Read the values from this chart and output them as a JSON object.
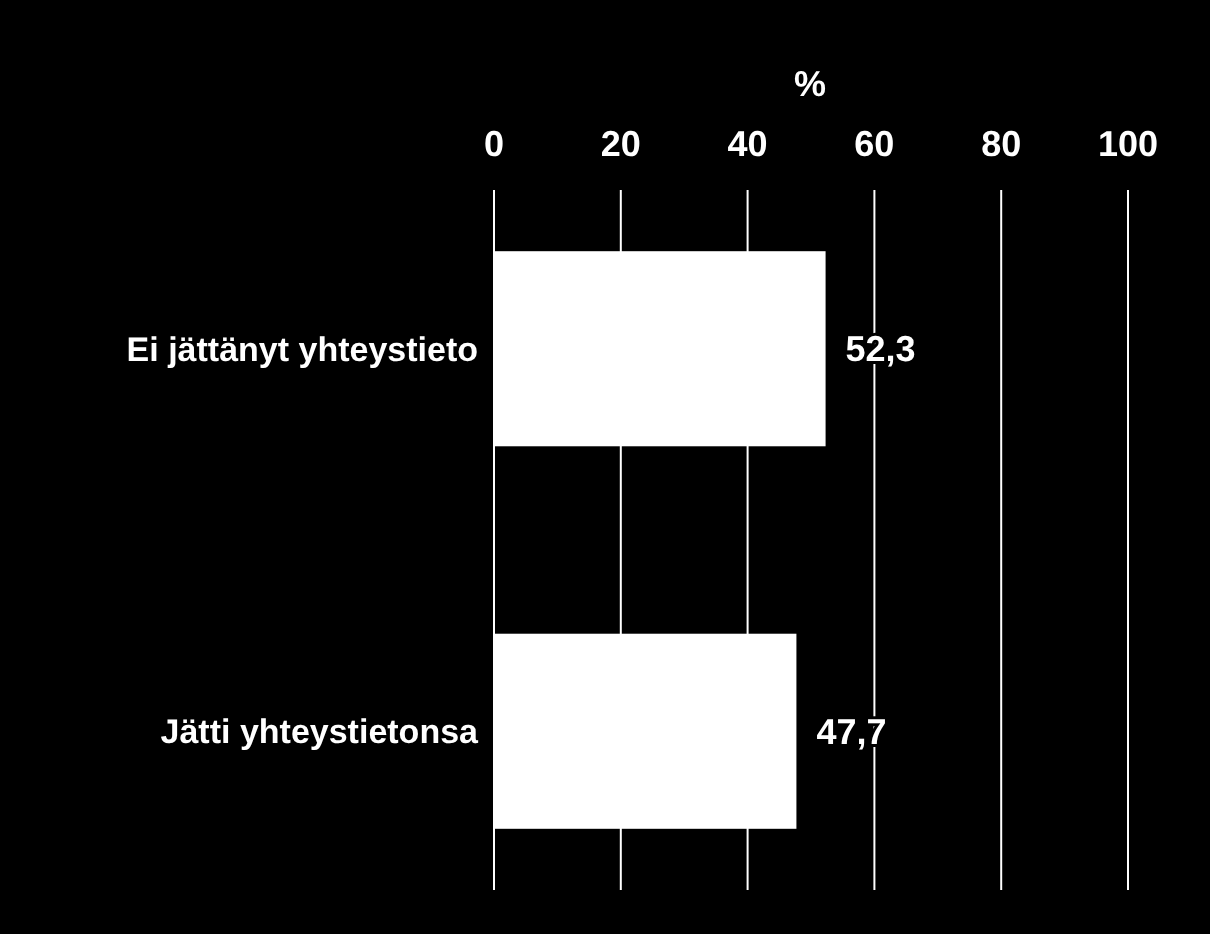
{
  "chart_data": {
    "type": "bar",
    "orientation": "horizontal",
    "xlabel": "%",
    "categories": [
      "Ei jättänyt yhteystieto",
      "Jätti yhteystietonsa"
    ],
    "values": [
      52.3,
      47.7
    ],
    "value_labels": [
      "52,3",
      "47,7"
    ],
    "color": "#ffffff",
    "xlim": [
      0,
      100
    ],
    "xticks": [
      0,
      20,
      40,
      60,
      80,
      100
    ],
    "grid": "x"
  }
}
